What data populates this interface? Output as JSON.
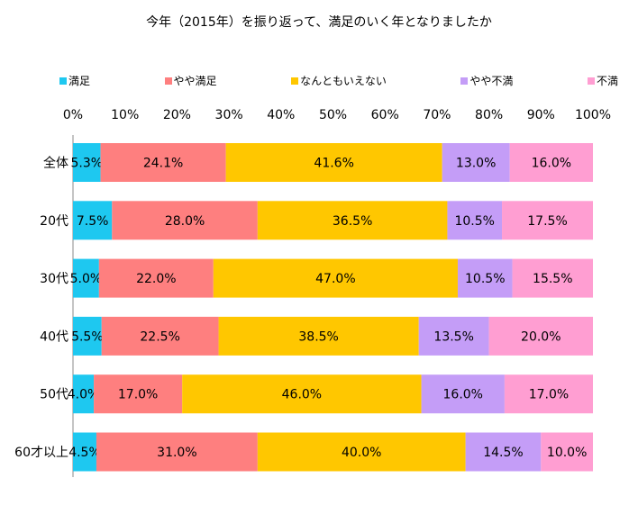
{
  "chart_data": {
    "type": "bar",
    "orientation": "horizontal",
    "stacked": true,
    "percent": true,
    "title": "今年（2015年）を振り返って、満足のいく年となりましたか",
    "categories": [
      "全体",
      "20代",
      "30代",
      "40代",
      "50代",
      "60才以上"
    ],
    "series": [
      {
        "name": "満足",
        "color": "#1ec8f0",
        "values": [
          5.3,
          7.5,
          5.0,
          5.5,
          4.0,
          4.5
        ],
        "labels": [
          "5.3%",
          "7.5%",
          "5.0%",
          "5.5%",
          "4.0%",
          "4.5%"
        ]
      },
      {
        "name": "やや満足",
        "color": "#fe7f7f",
        "values": [
          24.1,
          28.0,
          22.0,
          22.5,
          17.0,
          31.0
        ],
        "labels": [
          "24.1%",
          "28.0%",
          "22.0%",
          "22.5%",
          "17.0%",
          "31.0%"
        ]
      },
      {
        "name": "なんともいえない",
        "color": "#ffc700",
        "values": [
          41.6,
          36.5,
          47.0,
          38.5,
          46.0,
          40.0
        ],
        "labels": [
          "41.6%",
          "36.5%",
          "47.0%",
          "38.5%",
          "46.0%",
          "40.0%"
        ]
      },
      {
        "name": "やや不満",
        "color": "#c49df7",
        "values": [
          13.0,
          10.5,
          10.5,
          13.5,
          16.0,
          14.5
        ],
        "labels": [
          "13.0%",
          "10.5%",
          "10.5%",
          "13.5%",
          "16.0%",
          "14.5%"
        ]
      },
      {
        "name": "不満",
        "color": "#ff9ed2",
        "values": [
          16.0,
          17.5,
          15.5,
          20.0,
          17.0,
          10.0
        ],
        "labels": [
          "16.0%",
          "17.5%",
          "15.5%",
          "20.0%",
          "17.0%",
          "10.0%"
        ]
      }
    ],
    "xlim": [
      0,
      100
    ],
    "ticks": [
      "0%",
      "10%",
      "20%",
      "30%",
      "40%",
      "50%",
      "60%",
      "70%",
      "80%",
      "90%",
      "100%"
    ],
    "legend_position": "top",
    "grid": false
  }
}
